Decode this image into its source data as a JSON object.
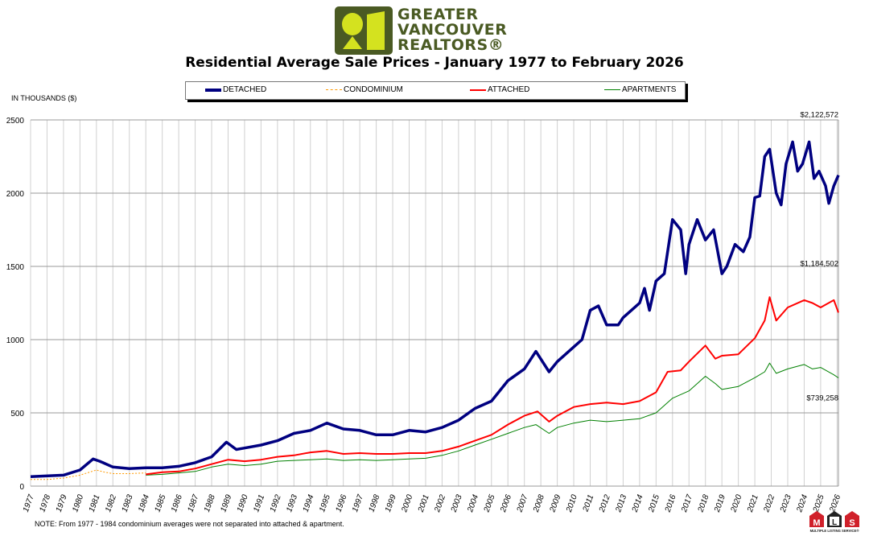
{
  "logo": {
    "lines": [
      "GREATER",
      "VANCOUVER",
      "REALTORS®"
    ],
    "colors": {
      "dark": "#4a5a23",
      "light": "#d4e21f"
    }
  },
  "mls_logo": {
    "letters": [
      "M",
      "L",
      "S"
    ],
    "caption": "MULTIPLE LISTING SERVICE®"
  },
  "note": "NOTE:  From 1977 - 1984 condominium averages were not separated into attached & apartment.",
  "chart_data": {
    "type": "line",
    "title": "Residential Average Sale Prices  -  January 1977 to February 2026",
    "ylabel": "IN THOUSANDS ($)",
    "xlabel": "",
    "ylim": [
      0,
      2500
    ],
    "xlim": [
      1977.0,
      2026.08
    ],
    "yticks": [
      "0",
      "500",
      "1000",
      "1500",
      "2000",
      "2500"
    ],
    "xticks": [
      "1977",
      "1978",
      "1979",
      "1980",
      "1981",
      "1982",
      "1983",
      "1984",
      "1985",
      "1986",
      "1987",
      "1988",
      "1989",
      "1990",
      "1991",
      "1992",
      "1993",
      "1994",
      "1995",
      "1996",
      "1997",
      "1998",
      "1999",
      "2000",
      "2001",
      "2002",
      "2003",
      "2004",
      "2005",
      "2006",
      "2007",
      "2008",
      "2009",
      "2010",
      "2011",
      "2012",
      "2013",
      "2014",
      "2015",
      "2016",
      "2017",
      "2018",
      "2019",
      "2020",
      "2021",
      "2022",
      "2023",
      "2024",
      "2025",
      "2026"
    ],
    "grid": true,
    "legend": "top",
    "series": [
      {
        "name": "DETACHED",
        "color": "#000080",
        "style": "thick",
        "x": [
          1977,
          1979,
          1980,
          1980.8,
          1981.2,
          1982,
          1983,
          1984,
          1985,
          1986,
          1987,
          1988,
          1988.9,
          1989.5,
          1990,
          1991,
          1992,
          1993,
          1994,
          1995,
          1996,
          1997,
          1998,
          1999,
          2000,
          2001,
          2002,
          2003,
          2004,
          2005,
          2006,
          2007,
          2007.7,
          2008.5,
          2009,
          2010,
          2010.5,
          2011,
          2011.5,
          2012,
          2012.7,
          2013,
          2014,
          2014.3,
          2014.6,
          2015,
          2015.5,
          2016,
          2016.5,
          2016.8,
          2017,
          2017.5,
          2018,
          2018.5,
          2019,
          2019.3,
          2019.8,
          2020.3,
          2020.7,
          2021,
          2021.3,
          2021.6,
          2021.9,
          2022.3,
          2022.6,
          2022.9,
          2023.3,
          2023.6,
          2023.9,
          2024.3,
          2024.6,
          2024.9,
          2025.3,
          2025.5,
          2025.8,
          2026.08
        ],
        "y": [
          65,
          75,
          110,
          185,
          170,
          130,
          120,
          125,
          125,
          135,
          160,
          200,
          300,
          250,
          260,
          280,
          310,
          360,
          380,
          430,
          390,
          380,
          350,
          350,
          380,
          370,
          400,
          450,
          530,
          580,
          720,
          800,
          920,
          780,
          850,
          950,
          1000,
          1200,
          1230,
          1100,
          1100,
          1150,
          1250,
          1350,
          1200,
          1400,
          1450,
          1820,
          1750,
          1450,
          1650,
          1820,
          1680,
          1750,
          1450,
          1500,
          1650,
          1600,
          1700,
          1970,
          1980,
          2250,
          2300,
          2000,
          1920,
          2200,
          2350,
          2150,
          2200,
          2350,
          2100,
          2150,
          2050,
          1930,
          2050,
          2122.572
        ]
      },
      {
        "name": "CONDOMINIUM",
        "color": "#ff9900",
        "style": "dashed",
        "x": [
          1977,
          1978,
          1979,
          1980,
          1981,
          1981.5,
          1982,
          1983,
          1984
        ],
        "y": [
          45,
          45,
          55,
          75,
          110,
          95,
          85,
          85,
          90
        ]
      },
      {
        "name": "ATTACHED",
        "color": "#ff0000",
        "style": "medium",
        "x": [
          1984,
          1985,
          1986,
          1987,
          1988,
          1989,
          1990,
          1991,
          1992,
          1993,
          1994,
          1995,
          1996,
          1997,
          1998,
          1999,
          2000,
          2001,
          2002,
          2003,
          2004,
          2005,
          2006,
          2007,
          2007.8,
          2008.5,
          2009,
          2010,
          2011,
          2012,
          2013,
          2014,
          2015,
          2015.7,
          2016.5,
          2017,
          2018,
          2018.6,
          2019,
          2020,
          2021,
          2021.6,
          2021.9,
          2022.3,
          2023,
          2024,
          2024.5,
          2025,
          2025.8,
          2026.08
        ],
        "y": [
          80,
          95,
          100,
          120,
          150,
          180,
          170,
          180,
          200,
          210,
          230,
          240,
          220,
          225,
          220,
          220,
          225,
          225,
          240,
          270,
          310,
          350,
          420,
          480,
          510,
          440,
          480,
          540,
          560,
          570,
          560,
          580,
          640,
          780,
          790,
          850,
          960,
          870,
          890,
          900,
          1010,
          1130,
          1290,
          1130,
          1220,
          1270,
          1250,
          1220,
          1270,
          1184.502
        ]
      },
      {
        "name": "APARTMENTS",
        "color": "#008000",
        "style": "thin",
        "x": [
          1984,
          1985,
          1986,
          1987,
          1988,
          1989,
          1990,
          1991,
          1992,
          1993,
          1994,
          1995,
          1996,
          1997,
          1998,
          1999,
          2000,
          2001,
          2002,
          2003,
          2004,
          2005,
          2006,
          2007,
          2007.7,
          2008.5,
          2009,
          2010,
          2011,
          2012,
          2013,
          2014,
          2015,
          2016,
          2017,
          2018,
          2018.6,
          2019,
          2020,
          2021,
          2021.6,
          2021.9,
          2022.3,
          2023,
          2024,
          2024.5,
          2025,
          2025.8,
          2026.08
        ],
        "y": [
          75,
          80,
          90,
          100,
          130,
          150,
          140,
          150,
          170,
          175,
          180,
          185,
          175,
          180,
          175,
          180,
          185,
          190,
          210,
          240,
          280,
          320,
          360,
          400,
          420,
          360,
          400,
          430,
          450,
          440,
          450,
          460,
          500,
          600,
          650,
          750,
          700,
          660,
          680,
          740,
          780,
          840,
          770,
          800,
          830,
          800,
          810,
          760,
          739.258
        ]
      }
    ],
    "annotations": [
      {
        "series": "DETACHED",
        "label": "$2,122,572"
      },
      {
        "series": "ATTACHED",
        "label": "$1,184,502"
      },
      {
        "series": "APARTMENTS",
        "label": "$739,258"
      }
    ]
  }
}
